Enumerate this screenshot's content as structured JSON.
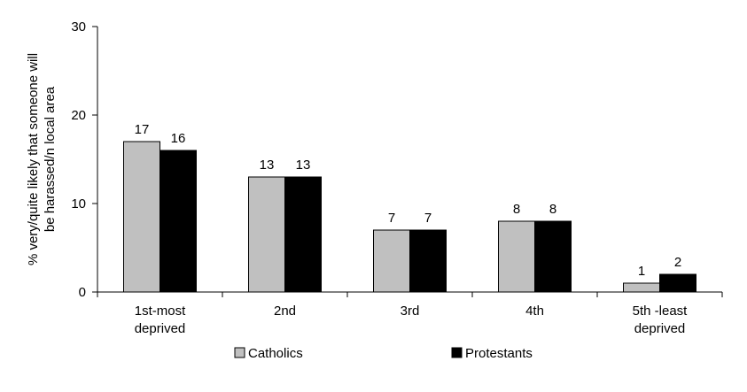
{
  "chart_data": {
    "type": "bar",
    "categories": [
      [
        "1st-most",
        "deprived"
      ],
      [
        "2nd"
      ],
      [
        "3rd"
      ],
      [
        "4th"
      ],
      [
        "5th -least",
        "deprived"
      ]
    ],
    "series": [
      {
        "name": "Catholics",
        "values": [
          17,
          13,
          7,
          8,
          1
        ],
        "color": "#c0c0c0"
      },
      {
        "name": "Protestants",
        "values": [
          16,
          13,
          7,
          8,
          2
        ],
        "color": "#000000"
      }
    ],
    "ylabel": [
      "% very/quite likely that someone will",
      "be harassed/n local area"
    ],
    "ylim": [
      0,
      30
    ],
    "yticks": [
      0,
      10,
      20,
      30
    ],
    "grid": false,
    "legend_position": "bottom"
  }
}
